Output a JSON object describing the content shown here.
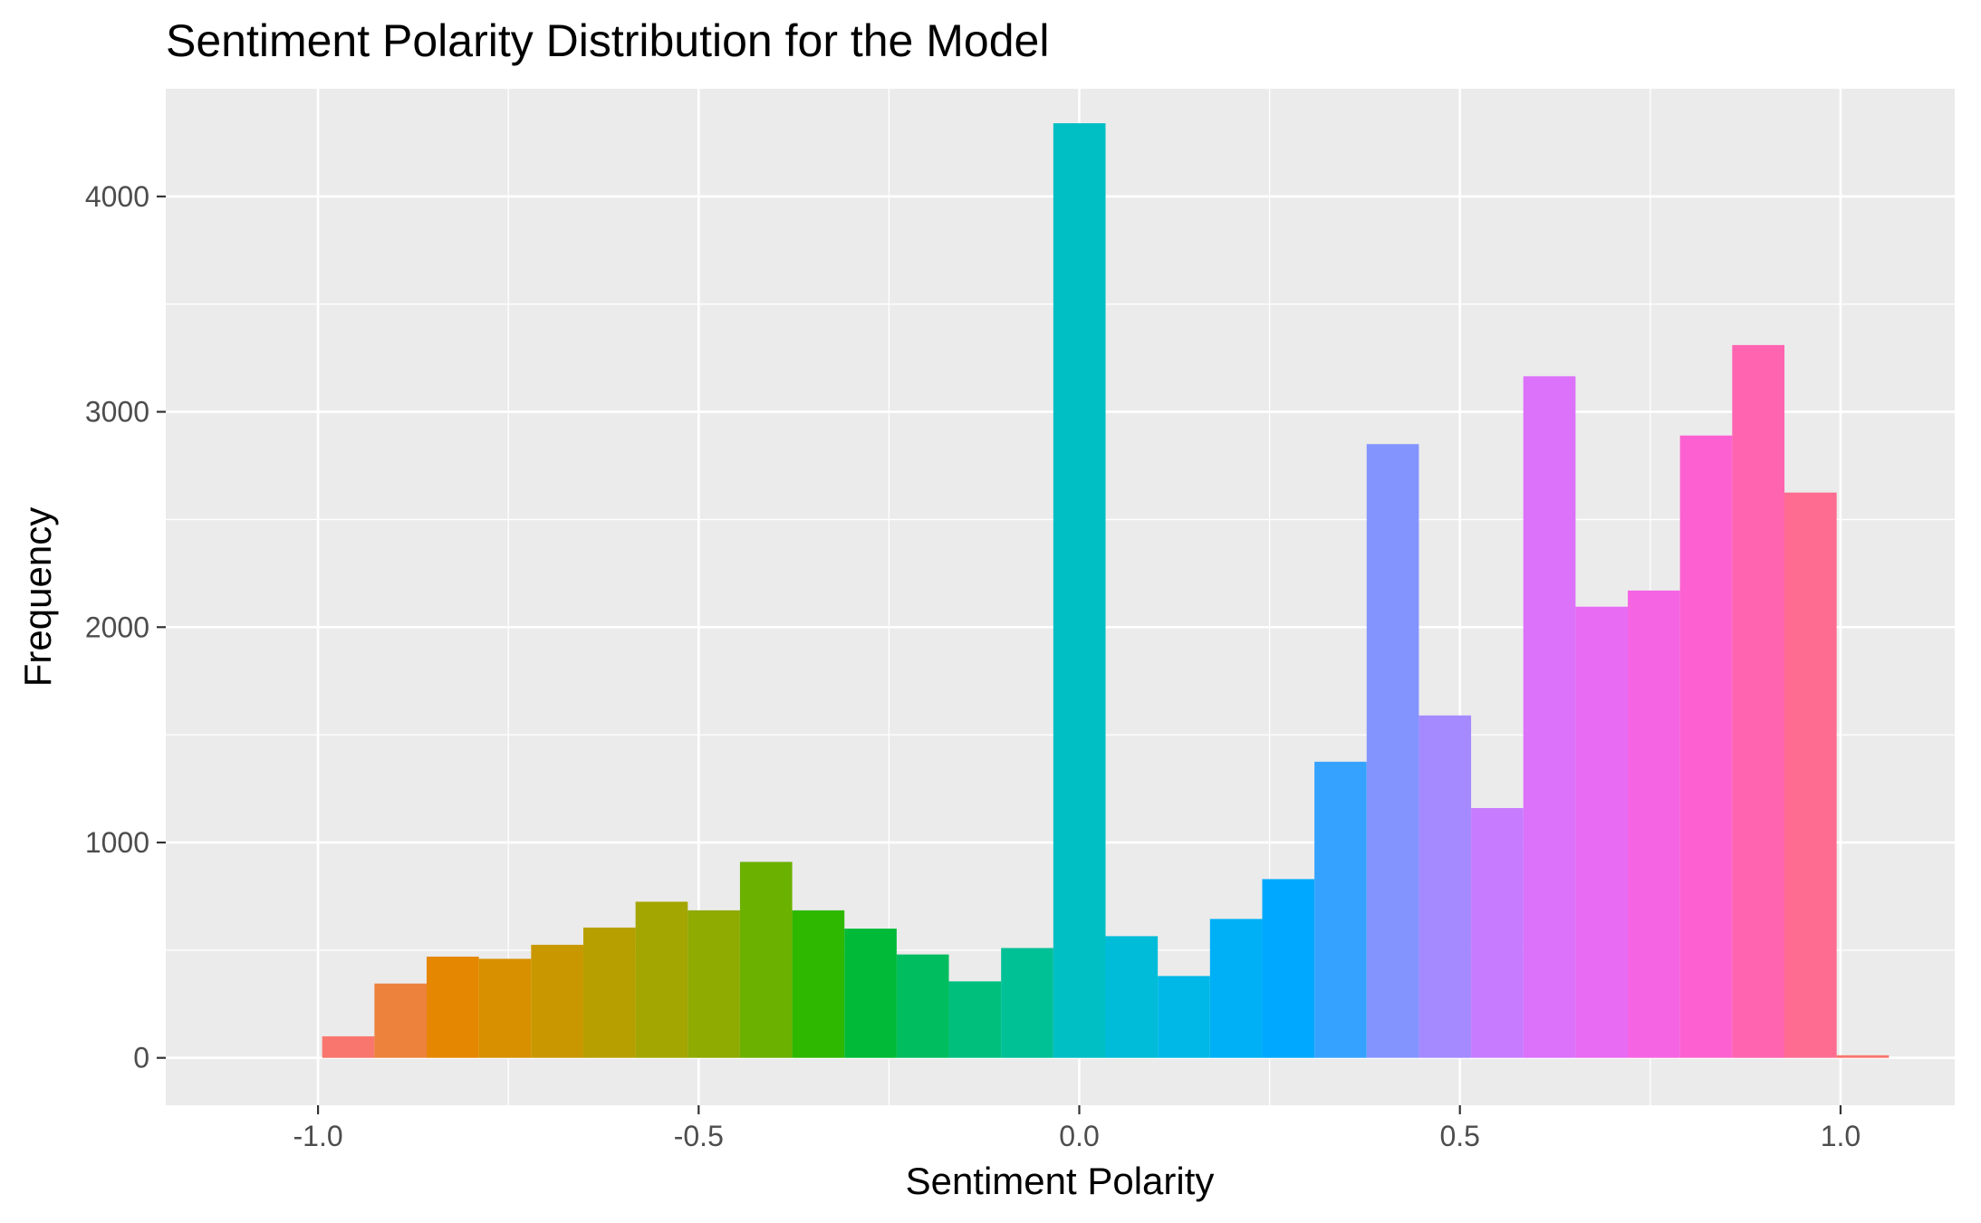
{
  "chart_data": {
    "type": "bar",
    "title": "Sentiment Polarity Distribution for the Model",
    "xlabel": "Sentiment Polarity",
    "ylabel": "Frequency",
    "xlim": [
      -1.2,
      1.15
    ],
    "ylim": [
      -220,
      4500
    ],
    "xticks": [
      -1.0,
      -0.5,
      0.0,
      0.5,
      1.0
    ],
    "xtick_labels": [
      "-1.0",
      "-0.5",
      "0.0",
      "0.5",
      "1.0"
    ],
    "yticks": [
      0,
      1000,
      2000,
      3000,
      4000
    ],
    "ytick_labels": [
      "0",
      "1000",
      "2000",
      "3000",
      "4000"
    ],
    "grid": true,
    "panel_color": "#ebebeb",
    "grid_color": "#ffffff",
    "bin_width": 0.0686,
    "bins": [
      {
        "x": -0.9602,
        "count": 100,
        "color": "#F8766D"
      },
      {
        "x": -0.8916,
        "count": 345,
        "color": "#EC823C"
      },
      {
        "x": -0.823,
        "count": 470,
        "color": "#E58700"
      },
      {
        "x": -0.7544,
        "count": 460,
        "color": "#D89000"
      },
      {
        "x": -0.6858,
        "count": 525,
        "color": "#C99800"
      },
      {
        "x": -0.6172,
        "count": 605,
        "color": "#B79F00"
      },
      {
        "x": -0.5486,
        "count": 725,
        "color": "#A3A500"
      },
      {
        "x": -0.48,
        "count": 685,
        "color": "#8FAA00"
      },
      {
        "x": -0.4114,
        "count": 910,
        "color": "#6BB100"
      },
      {
        "x": -0.3428,
        "count": 685,
        "color": "#2EB800"
      },
      {
        "x": -0.2742,
        "count": 600,
        "color": "#00BA38"
      },
      {
        "x": -0.2056,
        "count": 480,
        "color": "#00BD5F"
      },
      {
        "x": -0.137,
        "count": 355,
        "color": "#00BF7D"
      },
      {
        "x": -0.0684,
        "count": 510,
        "color": "#00C096"
      },
      {
        "x": 0.0002,
        "count": 4340,
        "color": "#00BFC4"
      },
      {
        "x": 0.0688,
        "count": 565,
        "color": "#00BCD8"
      },
      {
        "x": 0.1374,
        "count": 380,
        "color": "#00B8E7"
      },
      {
        "x": 0.206,
        "count": 645,
        "color": "#00B0F6"
      },
      {
        "x": 0.2746,
        "count": 830,
        "color": "#00A9FF"
      },
      {
        "x": 0.3432,
        "count": 1375,
        "color": "#35A2FF"
      },
      {
        "x": 0.4118,
        "count": 2850,
        "color": "#8494FF"
      },
      {
        "x": 0.4804,
        "count": 1590,
        "color": "#A58AFF"
      },
      {
        "x": 0.549,
        "count": 1160,
        "color": "#C77CFF"
      },
      {
        "x": 0.6176,
        "count": 3165,
        "color": "#DC71FA"
      },
      {
        "x": 0.6862,
        "count": 2095,
        "color": "#E76BF3"
      },
      {
        "x": 0.7548,
        "count": 2170,
        "color": "#F564E3"
      },
      {
        "x": 0.8234,
        "count": 2890,
        "color": "#FD61D1"
      },
      {
        "x": 0.892,
        "count": 3310,
        "color": "#FF64B0"
      },
      {
        "x": 0.9606,
        "count": 2625,
        "color": "#FF6C91"
      },
      {
        "x": 1.0292,
        "count": 12,
        "color": "#F8766D"
      }
    ]
  }
}
